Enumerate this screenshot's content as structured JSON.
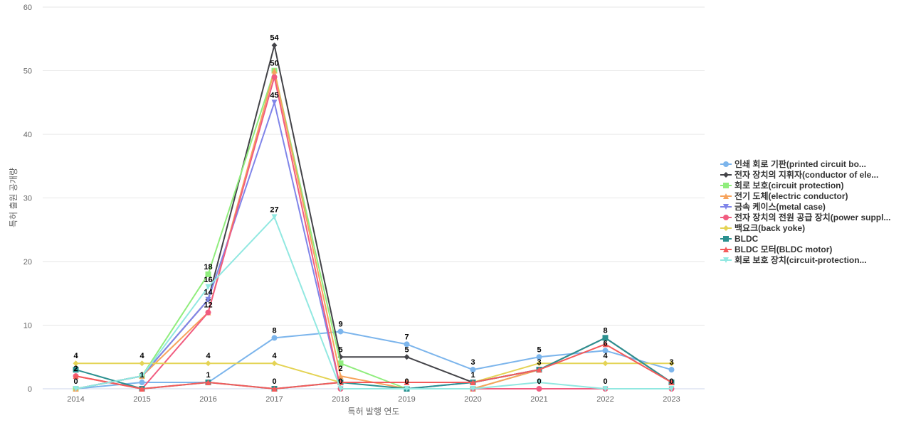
{
  "chart_data": {
    "type": "line",
    "title": "",
    "xlabel": "특허 발행 연도",
    "ylabel": "특허 출원 공개량",
    "ylim": [
      0,
      60
    ],
    "yticks": [
      0,
      10,
      20,
      30,
      40,
      50,
      60
    ],
    "categories": [
      "2014",
      "2015",
      "2016",
      "2017",
      "2018",
      "2019",
      "2020",
      "2021",
      "2022",
      "2023"
    ],
    "grid": true,
    "legend_position": "right",
    "series": [
      {
        "name": "인쇄 회로 기판(printed circuit bo...",
        "color": "#7cb5ec",
        "marker": "circle",
        "values": [
          0,
          1,
          1,
          8,
          9,
          7,
          3,
          5,
          6,
          3
        ]
      },
      {
        "name": "전자 장치의 지휘자(conductor of ele...",
        "color": "#434348",
        "marker": "diamond",
        "values": [
          0,
          2,
          14,
          54,
          5,
          5,
          1,
          3,
          8,
          1
        ]
      },
      {
        "name": "회로 보호(circuit protection)",
        "color": "#90ed7d",
        "marker": "square",
        "values": [
          0,
          2,
          18,
          50,
          4,
          0,
          0,
          3,
          8,
          1
        ]
      },
      {
        "name": "전기 도체(electric conductor)",
        "color": "#f7a35c",
        "marker": "triangle",
        "values": [
          0,
          2,
          12,
          50,
          2,
          0,
          0,
          3,
          8,
          1
        ]
      },
      {
        "name": "금속 케이스(metal case)",
        "color": "#8085e9",
        "marker": "triangle-down",
        "values": [
          0,
          2,
          14,
          45,
          0,
          0,
          1,
          3,
          8,
          1
        ]
      },
      {
        "name": "전자 장치의 전원 공급 장치(power suppl...",
        "color": "#f15c80",
        "marker": "circle",
        "values": [
          2,
          0,
          12,
          49,
          0,
          0,
          0,
          0,
          0,
          0
        ]
      },
      {
        "name": "백요크(back yoke)",
        "color": "#e4d354",
        "marker": "diamond",
        "values": [
          4,
          4,
          4,
          4,
          1,
          1,
          1,
          4,
          4,
          4
        ]
      },
      {
        "name": "BLDC",
        "color": "#2b908f",
        "marker": "square",
        "values": [
          3,
          0,
          1,
          0,
          1,
          0,
          1,
          3,
          8,
          1
        ]
      },
      {
        "name": "BLDC 모터(BLDC motor)",
        "color": "#f45b5b",
        "marker": "triangle",
        "values": [
          2,
          0,
          1,
          0,
          1,
          1,
          1,
          3,
          7,
          1
        ]
      },
      {
        "name": "회로 보호 장치(circuit-protection...",
        "color": "#91e8e1",
        "marker": "triangle-down",
        "values": [
          0,
          2,
          16,
          27,
          0,
          0,
          0,
          1,
          0,
          0
        ]
      }
    ],
    "data_labels": [
      {
        "category": "2014",
        "value": 4,
        "text": "4"
      },
      {
        "category": "2014",
        "value": 2,
        "text": "2"
      },
      {
        "category": "2014",
        "value": 0,
        "text": "0"
      },
      {
        "category": "2015",
        "value": 4,
        "text": "4"
      },
      {
        "category": "2015",
        "value": 1,
        "text": "1"
      },
      {
        "category": "2016",
        "value": 18,
        "text": "18"
      },
      {
        "category": "2016",
        "value": 16,
        "text": "16"
      },
      {
        "category": "2016",
        "value": 14,
        "text": "14"
      },
      {
        "category": "2016",
        "value": 12,
        "text": "12"
      },
      {
        "category": "2016",
        "value": 4,
        "text": "4"
      },
      {
        "category": "2016",
        "value": 1,
        "text": "1"
      },
      {
        "category": "2017",
        "value": 54,
        "text": "54"
      },
      {
        "category": "2017",
        "value": 50,
        "text": "50"
      },
      {
        "category": "2017",
        "value": 45,
        "text": "45"
      },
      {
        "category": "2017",
        "value": 27,
        "text": "27"
      },
      {
        "category": "2017",
        "value": 8,
        "text": "8"
      },
      {
        "category": "2017",
        "value": 4,
        "text": "4"
      },
      {
        "category": "2017",
        "value": 0,
        "text": "0"
      },
      {
        "category": "2018",
        "value": 9,
        "text": "9"
      },
      {
        "category": "2018",
        "value": 5,
        "text": "5"
      },
      {
        "category": "2018",
        "value": 2,
        "text": "2"
      },
      {
        "category": "2018",
        "value": 0,
        "text": "0"
      },
      {
        "category": "2019",
        "value": 7,
        "text": "7"
      },
      {
        "category": "2019",
        "value": 5,
        "text": "5"
      },
      {
        "category": "2019",
        "value": 0,
        "text": "0"
      },
      {
        "category": "2020",
        "value": 3,
        "text": "3"
      },
      {
        "category": "2020",
        "value": 1,
        "text": "1"
      },
      {
        "category": "2021",
        "value": 5,
        "text": "5"
      },
      {
        "category": "2021",
        "value": 3,
        "text": "3"
      },
      {
        "category": "2021",
        "value": 0,
        "text": "0"
      },
      {
        "category": "2022",
        "value": 8,
        "text": "8"
      },
      {
        "category": "2022",
        "value": 6,
        "text": "6"
      },
      {
        "category": "2022",
        "value": 4,
        "text": "4"
      },
      {
        "category": "2022",
        "value": 0,
        "text": "0"
      },
      {
        "category": "2023",
        "value": 3,
        "text": "3"
      },
      {
        "category": "2023",
        "value": 0,
        "text": "0"
      }
    ]
  }
}
